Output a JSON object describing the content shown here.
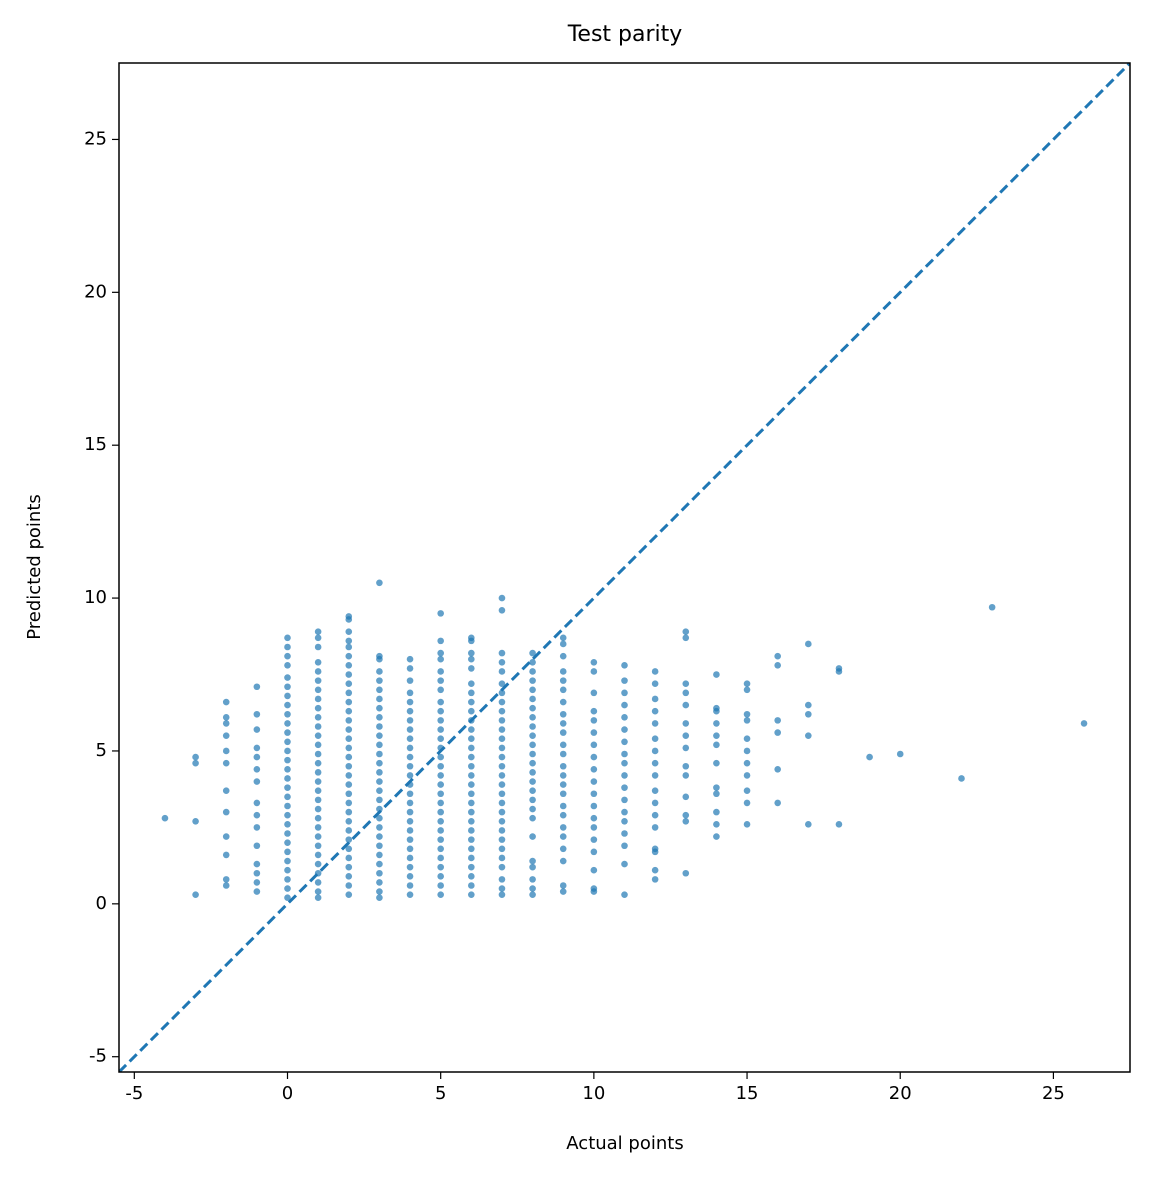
{
  "chart_data": {
    "type": "scatter",
    "title": "Test parity",
    "x_label": "Actual points",
    "y_label": "Predicted points",
    "xlim": [
      -5.5,
      27.5
    ],
    "ylim": [
      -5.5,
      27.5
    ],
    "xticks": [
      -5,
      0,
      5,
      10,
      15,
      20,
      25
    ],
    "yticks": [
      -5,
      0,
      5,
      10,
      15,
      20,
      25
    ],
    "diagonal": true,
    "grid": false,
    "series": [
      {
        "color": "#1f77b4",
        "x": [
          -4,
          -3,
          -3,
          -3,
          -3,
          -2,
          -2,
          -2,
          -2,
          -2,
          -2,
          -2,
          -2,
          -2,
          -2,
          -2,
          -2,
          -1,
          -1,
          -1,
          -1,
          -1,
          -1,
          -1,
          -1,
          -1,
          -1,
          -1,
          -1,
          -1,
          -1,
          -1,
          0,
          0,
          0,
          0,
          0,
          0,
          0,
          0,
          0,
          0,
          0,
          0,
          0,
          0,
          0,
          0,
          0,
          0,
          0,
          0,
          0,
          0,
          0,
          0,
          0,
          0,
          0,
          0,
          0,
          1,
          1,
          1,
          1,
          1,
          1,
          1,
          1,
          1,
          1,
          1,
          1,
          1,
          1,
          1,
          1,
          1,
          1,
          1,
          1,
          1,
          1,
          1,
          1,
          1,
          1,
          1,
          1,
          1,
          1,
          2,
          2,
          2,
          2,
          2,
          2,
          2,
          2,
          2,
          2,
          2,
          2,
          2,
          2,
          2,
          2,
          2,
          2,
          2,
          2,
          2,
          2,
          2,
          2,
          2,
          2,
          2,
          2,
          2,
          2,
          2,
          2,
          3,
          3,
          3,
          3,
          3,
          3,
          3,
          3,
          3,
          3,
          3,
          3,
          3,
          3,
          3,
          3,
          3,
          3,
          3,
          3,
          3,
          3,
          3,
          3,
          3,
          3,
          3,
          3,
          3,
          4,
          4,
          4,
          4,
          4,
          4,
          4,
          4,
          4,
          4,
          4,
          4,
          4,
          4,
          4,
          4,
          4,
          4,
          4,
          4,
          4,
          4,
          4,
          4,
          4,
          4,
          5,
          5,
          5,
          5,
          5,
          5,
          5,
          5,
          5,
          5,
          5,
          5,
          5,
          5,
          5,
          5,
          5,
          5,
          5,
          5,
          5,
          5,
          5,
          5,
          5,
          5,
          5,
          5,
          5,
          6,
          6,
          6,
          6,
          6,
          6,
          6,
          6,
          6,
          6,
          6,
          6,
          6,
          6,
          6,
          6,
          6,
          6,
          6,
          6,
          6,
          6,
          6,
          6,
          6,
          6,
          6,
          6,
          6,
          7,
          7,
          7,
          7,
          7,
          7,
          7,
          7,
          7,
          7,
          7,
          7,
          7,
          7,
          7,
          7,
          7,
          7,
          7,
          7,
          7,
          7,
          7,
          7,
          7,
          7,
          7,
          7,
          7,
          8,
          8,
          8,
          8,
          8,
          8,
          8,
          8,
          8,
          8,
          8,
          8,
          8,
          8,
          8,
          8,
          8,
          8,
          8,
          8,
          8,
          8,
          8,
          8,
          8,
          9,
          9,
          9,
          9,
          9,
          9,
          9,
          9,
          9,
          9,
          9,
          9,
          9,
          9,
          9,
          9,
          9,
          9,
          9,
          9,
          9,
          9,
          9,
          9,
          10,
          10,
          10,
          10,
          10,
          10,
          10,
          10,
          10,
          10,
          10,
          10,
          10,
          10,
          10,
          10,
          10,
          10,
          10,
          11,
          11,
          11,
          11,
          11,
          11,
          11,
          11,
          11,
          11,
          11,
          11,
          11,
          11,
          11,
          11,
          11,
          11,
          12,
          12,
          12,
          12,
          12,
          12,
          12,
          12,
          12,
          12,
          12,
          12,
          12,
          12,
          12,
          12,
          12,
          13,
          13,
          13,
          13,
          13,
          13,
          13,
          13,
          13,
          13,
          13,
          13,
          13,
          13,
          14,
          14,
          14,
          14,
          14,
          14,
          14,
          14,
          14,
          14,
          14,
          14,
          15,
          15,
          15,
          15,
          15,
          15,
          15,
          15,
          15,
          15,
          15,
          16,
          16,
          16,
          16,
          16,
          16,
          17,
          17,
          17,
          17,
          17,
          18,
          18,
          18,
          19,
          20,
          22,
          23,
          26
        ],
        "values": [
          2.8,
          4.8,
          4.6,
          2.7,
          0.3,
          6.6,
          6.1,
          5.9,
          5.5,
          5.0,
          4.6,
          3.7,
          3.0,
          2.2,
          1.6,
          0.8,
          0.6,
          7.1,
          6.2,
          5.7,
          5.1,
          4.8,
          4.4,
          4.0,
          3.3,
          2.9,
          2.5,
          1.9,
          1.3,
          1.0,
          0.7,
          0.4,
          8.7,
          8.4,
          8.1,
          7.8,
          7.4,
          7.1,
          6.8,
          6.5,
          6.2,
          5.9,
          5.6,
          5.3,
          5.0,
          4.7,
          4.4,
          4.1,
          3.8,
          3.5,
          3.2,
          2.9,
          2.6,
          2.3,
          2.0,
          1.7,
          1.4,
          1.1,
          0.8,
          0.5,
          0.2,
          8.9,
          8.7,
          8.4,
          7.9,
          7.6,
          7.3,
          7.0,
          6.7,
          6.4,
          6.1,
          5.8,
          5.5,
          5.2,
          4.9,
          4.6,
          4.3,
          4.0,
          3.7,
          3.4,
          3.1,
          2.8,
          2.5,
          2.2,
          1.9,
          1.6,
          1.3,
          1.0,
          0.7,
          0.4,
          0.2,
          9.4,
          9.3,
          8.9,
          8.6,
          8.4,
          8.1,
          7.8,
          7.5,
          7.2,
          6.9,
          6.6,
          6.3,
          6.0,
          5.7,
          5.4,
          5.1,
          4.8,
          4.5,
          4.2,
          3.9,
          3.6,
          3.3,
          3.0,
          2.7,
          2.4,
          2.1,
          1.8,
          1.5,
          1.2,
          0.9,
          0.6,
          0.3,
          10.5,
          8.1,
          8.0,
          7.6,
          7.3,
          7.0,
          6.7,
          6.4,
          6.1,
          5.8,
          5.5,
          5.2,
          4.9,
          4.6,
          4.3,
          4.0,
          3.7,
          3.4,
          3.1,
          2.8,
          2.5,
          2.2,
          1.9,
          1.6,
          1.3,
          1.0,
          0.7,
          0.4,
          0.2,
          8.0,
          7.7,
          7.3,
          6.9,
          6.6,
          6.3,
          6.0,
          5.7,
          5.4,
          5.1,
          4.8,
          4.5,
          4.2,
          3.9,
          3.6,
          3.3,
          3.0,
          2.7,
          2.4,
          2.1,
          1.8,
          1.5,
          1.2,
          0.9,
          0.6,
          0.3,
          9.5,
          8.6,
          8.2,
          8.0,
          7.6,
          7.3,
          7.0,
          6.6,
          6.3,
          6.0,
          5.7,
          5.4,
          5.1,
          4.8,
          4.5,
          4.2,
          3.9,
          3.6,
          3.3,
          3.0,
          2.7,
          2.4,
          2.1,
          1.8,
          1.5,
          1.2,
          0.9,
          0.6,
          0.3,
          8.7,
          8.6,
          8.2,
          8.0,
          7.7,
          7.2,
          6.9,
          6.6,
          6.3,
          6.0,
          5.7,
          5.4,
          5.1,
          4.8,
          4.5,
          4.2,
          3.9,
          3.6,
          3.3,
          3.0,
          2.7,
          2.4,
          2.1,
          1.8,
          1.5,
          1.2,
          0.9,
          0.6,
          0.3,
          10.0,
          9.6,
          8.2,
          7.9,
          7.6,
          7.2,
          6.9,
          6.6,
          6.3,
          6.0,
          5.7,
          5.4,
          5.1,
          4.8,
          4.5,
          4.2,
          3.9,
          3.6,
          3.3,
          3.0,
          2.7,
          2.4,
          2.1,
          1.8,
          1.5,
          1.2,
          0.8,
          0.5,
          0.3,
          8.2,
          7.9,
          7.6,
          7.3,
          7.0,
          6.7,
          6.4,
          6.1,
          5.8,
          5.5,
          5.2,
          4.9,
          4.6,
          4.3,
          4.0,
          3.7,
          3.4,
          3.1,
          2.8,
          2.2,
          1.4,
          1.2,
          0.8,
          0.5,
          0.3,
          8.7,
          8.5,
          8.1,
          7.6,
          7.3,
          7.0,
          6.6,
          6.2,
          5.9,
          5.6,
          5.2,
          4.9,
          4.5,
          4.2,
          3.9,
          3.6,
          3.2,
          2.9,
          2.5,
          2.2,
          1.8,
          1.4,
          0.6,
          0.4,
          7.9,
          7.6,
          6.9,
          6.3,
          6.0,
          5.6,
          5.2,
          4.8,
          4.4,
          4.0,
          3.6,
          3.2,
          2.8,
          2.5,
          2.1,
          1.7,
          1.1,
          0.5,
          0.4,
          7.8,
          7.3,
          6.9,
          6.5,
          6.1,
          5.7,
          5.3,
          4.9,
          4.6,
          4.2,
          3.8,
          3.4,
          3.0,
          2.7,
          2.3,
          1.9,
          1.3,
          0.3,
          7.6,
          7.2,
          6.7,
          6.3,
          5.9,
          5.4,
          5.0,
          4.6,
          4.2,
          3.7,
          3.3,
          2.9,
          2.5,
          1.8,
          1.7,
          1.1,
          0.8,
          8.9,
          8.7,
          7.2,
          6.9,
          6.5,
          5.9,
          5.5,
          5.1,
          4.5,
          4.2,
          3.5,
          2.9,
          2.7,
          1.0,
          7.5,
          6.4,
          6.3,
          5.9,
          5.5,
          5.2,
          4.6,
          3.8,
          3.6,
          3.0,
          2.6,
          2.2,
          7.2,
          7.0,
          6.2,
          6.0,
          5.4,
          5.0,
          4.6,
          4.2,
          3.7,
          3.3,
          2.6,
          8.1,
          7.8,
          6.0,
          5.6,
          4.4,
          3.3,
          8.5,
          6.5,
          6.2,
          5.5,
          2.6,
          7.7,
          7.6,
          2.6,
          4.8,
          4.9,
          4.1,
          9.7,
          5.9
        ]
      }
    ]
  }
}
